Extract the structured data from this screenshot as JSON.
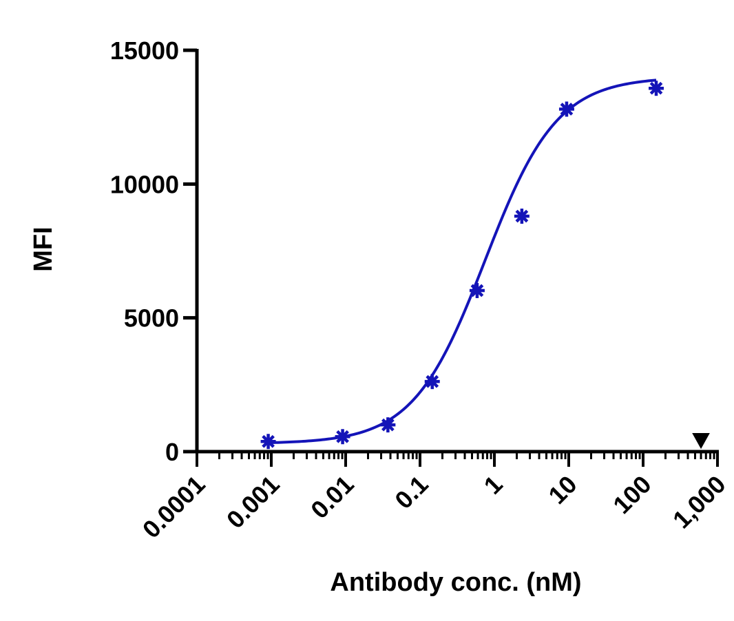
{
  "chart_data": {
    "type": "scatter",
    "xlabel": "Antibody conc. (nM)",
    "ylabel": "MFI",
    "x_scale": "log",
    "xlim": [
      0.0001,
      1000
    ],
    "ylim": [
      0,
      15000
    ],
    "x_ticks": [
      0.0001,
      0.001,
      0.01,
      0.1,
      1,
      10,
      100,
      1000
    ],
    "x_tick_labels": [
      "0.0001",
      "0.001",
      "0.01",
      "0.1",
      "1",
      "10",
      "100",
      "1,000"
    ],
    "y_ticks": [
      0,
      5000,
      10000,
      15000
    ],
    "y_tick_labels": [
      "0",
      "5000",
      "10000",
      "15000"
    ],
    "grid": false,
    "legend": "none",
    "series": [
      {
        "marker": "asterisk",
        "color": "#1414b8",
        "x": [
          0.00091,
          0.0091,
          0.037,
          0.146,
          0.586,
          2.34,
          9.37,
          150
        ],
        "y": [
          380,
          560,
          1000,
          2620,
          6020,
          8800,
          12800,
          13580
        ],
        "fit": "4PL",
        "fit_params": {
          "bottom": 300,
          "top": 14000,
          "ec50": 0.75,
          "hill": 0.9
        }
      },
      {
        "marker": "triangle-down",
        "color": "#000000",
        "x": [
          600
        ],
        "y": [
          420
        ]
      }
    ]
  }
}
